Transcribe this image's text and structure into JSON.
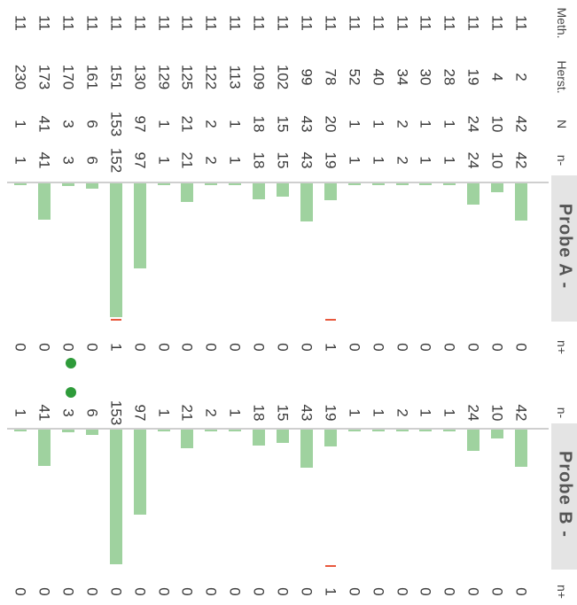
{
  "headers": {
    "meth": "Meth.",
    "herst": "Herst.",
    "n": "N",
    "n_minus": "n-",
    "n_plus": "n+"
  },
  "probes": [
    {
      "label": "Probe A -"
    },
    {
      "label": "Probe B -"
    }
  ],
  "rows": [
    {
      "meth": "11",
      "herst": "2",
      "n": "42",
      "a_nminus": "42",
      "a_nplus": "0",
      "b_nminus": "42",
      "b_nplus": "0"
    },
    {
      "meth": "11",
      "herst": "4",
      "n": "10",
      "a_nminus": "10",
      "a_nplus": "0",
      "b_nminus": "10",
      "b_nplus": "0"
    },
    {
      "meth": "11",
      "herst": "19",
      "n": "24",
      "a_nminus": "24",
      "a_nplus": "0",
      "b_nminus": "24",
      "b_nplus": "0"
    },
    {
      "meth": "11",
      "herst": "28",
      "n": "1",
      "a_nminus": "1",
      "a_nplus": "0",
      "b_nminus": "1",
      "b_nplus": "0"
    },
    {
      "meth": "11",
      "herst": "30",
      "n": "1",
      "a_nminus": "1",
      "a_nplus": "0",
      "b_nminus": "1",
      "b_nplus": "0"
    },
    {
      "meth": "11",
      "herst": "34",
      "n": "2",
      "a_nminus": "2",
      "a_nplus": "0",
      "b_nminus": "2",
      "b_nplus": "0"
    },
    {
      "meth": "11",
      "herst": "40",
      "n": "1",
      "a_nminus": "1",
      "a_nplus": "0",
      "b_nminus": "1",
      "b_nplus": "0"
    },
    {
      "meth": "11",
      "herst": "52",
      "n": "1",
      "a_nminus": "1",
      "a_nplus": "0",
      "b_nminus": "1",
      "b_nplus": "0"
    },
    {
      "meth": "11",
      "herst": "78",
      "n": "20",
      "a_nminus": "19",
      "a_nplus": "1",
      "b_nminus": "19",
      "b_nplus": "1"
    },
    {
      "meth": "11",
      "herst": "99",
      "n": "43",
      "a_nminus": "43",
      "a_nplus": "0",
      "b_nminus": "43",
      "b_nplus": "0"
    },
    {
      "meth": "11",
      "herst": "102",
      "n": "15",
      "a_nminus": "15",
      "a_nplus": "0",
      "b_nminus": "15",
      "b_nplus": "0"
    },
    {
      "meth": "11",
      "herst": "109",
      "n": "18",
      "a_nminus": "18",
      "a_nplus": "0",
      "b_nminus": "18",
      "b_nplus": "0"
    },
    {
      "meth": "11",
      "herst": "113",
      "n": "1",
      "a_nminus": "1",
      "a_nplus": "0",
      "b_nminus": "1",
      "b_nplus": "0"
    },
    {
      "meth": "11",
      "herst": "122",
      "n": "2",
      "a_nminus": "2",
      "a_nplus": "0",
      "b_nminus": "2",
      "b_nplus": "0"
    },
    {
      "meth": "11",
      "herst": "125",
      "n": "21",
      "a_nminus": "21",
      "a_nplus": "0",
      "b_nminus": "21",
      "b_nplus": "0"
    },
    {
      "meth": "11",
      "herst": "129",
      "n": "1",
      "a_nminus": "1",
      "a_nplus": "0",
      "b_nminus": "1",
      "b_nplus": "0"
    },
    {
      "meth": "11",
      "herst": "130",
      "n": "97",
      "a_nminus": "97",
      "a_nplus": "0",
      "b_nminus": "97",
      "b_nplus": "0"
    },
    {
      "meth": "11",
      "herst": "151",
      "n": "153",
      "a_nminus": "152",
      "a_nplus": "1",
      "b_nminus": "153",
      "b_nplus": "0"
    },
    {
      "meth": "11",
      "herst": "161",
      "n": "6",
      "a_nminus": "6",
      "a_nplus": "0",
      "b_nminus": "6",
      "b_nplus": "0"
    },
    {
      "meth": "11",
      "herst": "170",
      "n": "3",
      "a_nminus": "3",
      "a_nplus": "0",
      "b_nminus": "3",
      "b_nplus": "0"
    },
    {
      "meth": "11",
      "herst": "173",
      "n": "41",
      "a_nminus": "41",
      "a_nplus": "0",
      "b_nminus": "41",
      "b_nplus": "0"
    },
    {
      "meth": "11",
      "herst": "230",
      "n": "1",
      "a_nminus": "1",
      "a_nplus": "0",
      "b_nminus": "1",
      "b_nplus": "0"
    }
  ],
  "colors": {
    "bar": "#9fd29f",
    "nplus_marker": "#e8583d",
    "dot": "#2e9b3a",
    "probe_header_bg": "#e4e4e4"
  }
}
